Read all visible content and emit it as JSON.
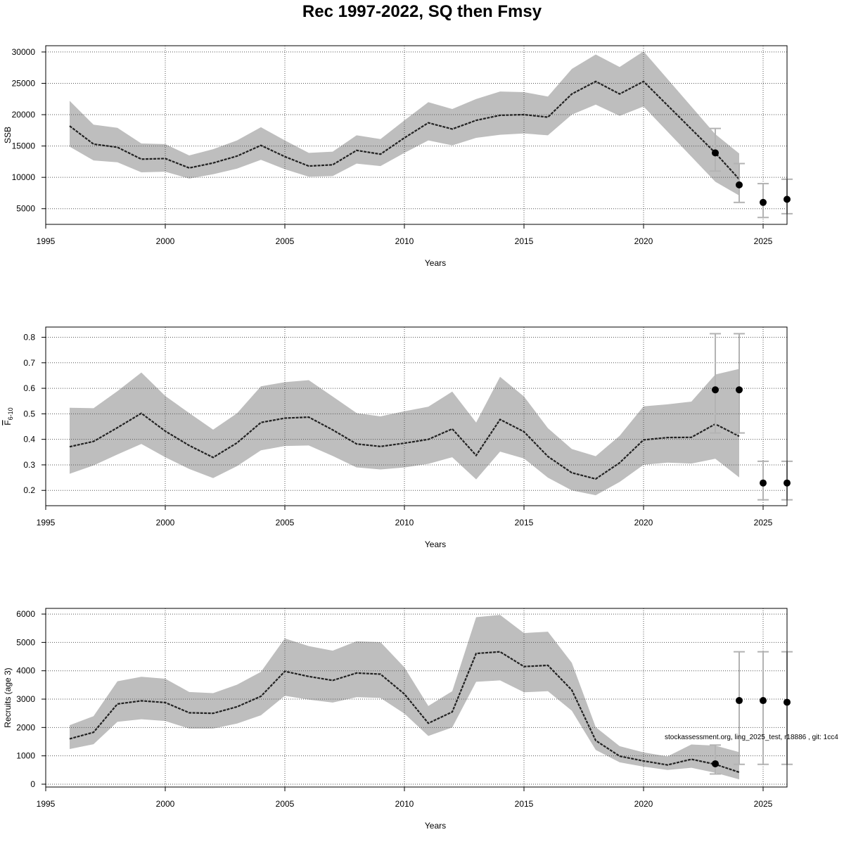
{
  "title": "Rec 1997-2022, SQ then Fmsy",
  "footnote": "stockassessment.org, ling_2025_test, r18886 , git: 1cc4",
  "colors": {
    "band": "#bebebe",
    "line": "#222222",
    "point": "#000000",
    "error_bar": "#b3b3b3",
    "grid": "#555555"
  },
  "chart_data": [
    {
      "type": "line",
      "ylabel": "SSB",
      "ylabel_parts": null,
      "xlabel": "Years",
      "xlim": [
        1995,
        2026
      ],
      "ylim": [
        2500,
        31000
      ],
      "xticks": [
        1995,
        2000,
        2005,
        2010,
        2015,
        2020,
        2025
      ],
      "yticks": [
        5000,
        10000,
        15000,
        20000,
        25000,
        30000
      ],
      "grid": true,
      "estimate": {
        "x": [
          1996,
          1997,
          1998,
          1999,
          2000,
          2001,
          2002,
          2003,
          2004,
          2005,
          2006,
          2007,
          2008,
          2009,
          2010,
          2011,
          2012,
          2013,
          2014,
          2015,
          2016,
          2017,
          2018,
          2019,
          2020,
          2021,
          2022,
          2023,
          2024
        ],
        "y": [
          18200,
          15300,
          14800,
          12900,
          13000,
          11500,
          12300,
          13400,
          15100,
          13300,
          11800,
          12000,
          14300,
          13700,
          16300,
          18700,
          17700,
          19100,
          19900,
          20000,
          19600,
          23300,
          25300,
          23300,
          25300,
          null,
          null,
          13900,
          9700
        ],
        "lower": [
          14900,
          12700,
          12400,
          10800,
          10900,
          9800,
          10500,
          11400,
          12800,
          11300,
          10100,
          10200,
          12200,
          11800,
          13900,
          15900,
          15100,
          16300,
          16800,
          17000,
          16700,
          20000,
          21600,
          19800,
          21300,
          null,
          null,
          9300,
          7100
        ],
        "upper": [
          22200,
          18400,
          17900,
          15400,
          15300,
          13500,
          14500,
          15900,
          18000,
          15900,
          13900,
          14100,
          16700,
          16100,
          19100,
          22000,
          20900,
          22500,
          23700,
          23600,
          22900,
          27300,
          29600,
          27600,
          30100,
          null,
          null,
          16900,
          13800
        ]
      },
      "forecast": {
        "x": [
          2023,
          2024,
          2025,
          2026
        ],
        "y": [
          13900,
          8800,
          6000,
          6500
        ],
        "lower": [
          11000,
          6000,
          3600,
          4200
        ],
        "upper": [
          17800,
          12200,
          9000,
          9700
        ]
      }
    },
    {
      "type": "line",
      "ylabel": "F",
      "ylabel_parts": [
        "F",
        "6-10"
      ],
      "xlabel": "Years",
      "xlim": [
        1995,
        2026
      ],
      "ylim": [
        0.14,
        0.84
      ],
      "xticks": [
        1995,
        2000,
        2005,
        2010,
        2015,
        2020,
        2025
      ],
      "yticks": [
        0.2,
        0.3,
        0.4,
        0.5,
        0.6,
        0.7,
        0.8
      ],
      "grid": true,
      "estimate": {
        "x": [
          1996,
          1997,
          1998,
          1999,
          2000,
          2001,
          2002,
          2003,
          2004,
          2005,
          2006,
          2007,
          2008,
          2009,
          2010,
          2011,
          2012,
          2013,
          2014,
          2015,
          2016,
          2017,
          2018,
          2019,
          2020,
          2021,
          2022,
          2023,
          2024
        ],
        "y": [
          0.371,
          0.392,
          0.446,
          0.502,
          0.432,
          0.376,
          0.329,
          0.386,
          0.466,
          0.483,
          0.487,
          0.437,
          0.382,
          0.372,
          0.385,
          0.4,
          0.441,
          0.337,
          0.478,
          0.43,
          0.333,
          0.269,
          0.245,
          0.308,
          0.398,
          0.407,
          0.408,
          0.46,
          0.412
        ],
        "lower": [
          0.265,
          0.298,
          0.341,
          0.382,
          0.33,
          0.284,
          0.248,
          0.295,
          0.357,
          0.374,
          0.376,
          0.335,
          0.29,
          0.282,
          0.29,
          0.304,
          0.33,
          0.243,
          0.352,
          0.325,
          0.25,
          0.2,
          0.181,
          0.233,
          0.3,
          0.309,
          0.305,
          0.324,
          0.251
        ],
        "upper": [
          0.524,
          0.522,
          0.589,
          0.662,
          0.57,
          0.503,
          0.438,
          0.502,
          0.608,
          0.624,
          0.632,
          0.568,
          0.503,
          0.49,
          0.51,
          0.528,
          0.587,
          0.466,
          0.645,
          0.568,
          0.444,
          0.362,
          0.334,
          0.414,
          0.529,
          0.537,
          0.548,
          0.654,
          0.676
        ]
      },
      "forecast": {
        "x": [
          2023,
          2024,
          2025,
          2026
        ],
        "y": [
          0.594,
          0.594,
          0.229,
          0.229
        ],
        "lower": [
          0.425,
          0.425,
          0.163,
          0.163
        ],
        "upper": [
          0.814,
          0.814,
          0.314,
          0.314
        ]
      }
    },
    {
      "type": "line",
      "ylabel": "Recruits (age 3)",
      "ylabel_parts": null,
      "xlabel": "Years",
      "xlim": [
        1995,
        2026
      ],
      "ylim": [
        -100,
        6200
      ],
      "xticks": [
        1995,
        2000,
        2005,
        2010,
        2015,
        2020,
        2025
      ],
      "yticks": [
        0,
        1000,
        2000,
        3000,
        4000,
        5000,
        6000
      ],
      "grid": true,
      "estimate": {
        "x": [
          1996,
          1997,
          1998,
          1999,
          2000,
          2001,
          2002,
          2003,
          2004,
          2005,
          2006,
          2007,
          2008,
          2009,
          2010,
          2011,
          2012,
          2013,
          2014,
          2015,
          2016,
          2017,
          2018,
          2019,
          2020,
          2021,
          2022,
          2023,
          2024
        ],
        "y": [
          1600,
          1830,
          2830,
          2940,
          2880,
          2520,
          2500,
          2730,
          3100,
          3980,
          3800,
          3660,
          3920,
          3880,
          3180,
          2150,
          2550,
          4610,
          4670,
          4150,
          4190,
          3320,
          1540,
          990,
          820,
          680,
          880,
          700,
          420
        ],
        "lower": [
          1240,
          1410,
          2200,
          2290,
          2230,
          1960,
          1960,
          2140,
          2430,
          3120,
          2980,
          2880,
          3070,
          3040,
          2490,
          1700,
          2000,
          3610,
          3660,
          3240,
          3280,
          2590,
          1210,
          770,
          620,
          500,
          580,
          400,
          170
        ],
        "upper": [
          2080,
          2400,
          3630,
          3790,
          3720,
          3250,
          3210,
          3510,
          3960,
          5140,
          4870,
          4710,
          5040,
          5010,
          4120,
          2760,
          3280,
          5890,
          5970,
          5330,
          5380,
          4280,
          2010,
          1340,
          1120,
          980,
          1400,
          1360,
          1130
        ]
      },
      "forecast": {
        "x": [
          2023,
          2024,
          2025,
          2026
        ],
        "y": [
          720,
          2950,
          2950,
          2890
        ],
        "lower": [
          360,
          700,
          700,
          700
        ],
        "upper": [
          1380,
          4670,
          4670,
          4670
        ]
      }
    }
  ]
}
